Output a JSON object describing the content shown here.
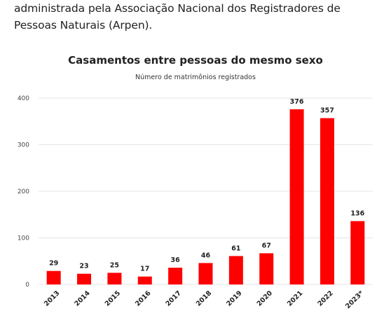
{
  "article": {
    "text": "administrada pela Associação Nacional dos Registradores de Pessoas Naturais (Arpen)."
  },
  "colors": {
    "bar": "#ff0000",
    "grid": "#e6e6e6",
    "text": "#222222"
  },
  "chart_data": {
    "type": "bar",
    "title": "Casamentos entre pessoas do mesmo sexo",
    "subtitle": "Número de matrimônios registrados",
    "xlabel": "",
    "ylabel": "",
    "categories": [
      "2013",
      "2014",
      "2015",
      "2016",
      "2017",
      "2018",
      "2019",
      "2020",
      "2021",
      "2022",
      "2023*"
    ],
    "values": [
      29,
      23,
      25,
      17,
      36,
      46,
      61,
      67,
      376,
      357,
      136
    ],
    "ylim": [
      0,
      400
    ],
    "yticks": [
      0,
      100,
      200,
      300,
      400
    ],
    "grid": true,
    "legend": "none"
  }
}
